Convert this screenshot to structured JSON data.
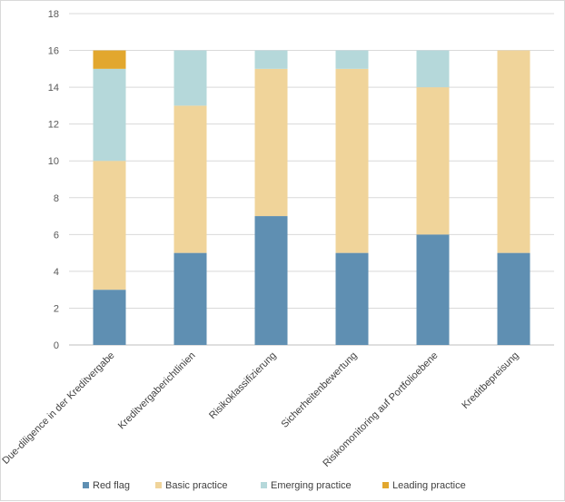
{
  "chart_data": {
    "type": "bar",
    "stacked": true,
    "categories": [
      "Due-diligence in der Kreditvergabe",
      "Kreditvergaberichtlinien",
      "Risikoklassifizierung",
      "Sicherheitenbewertung",
      "Risikomonitoring auf Portfolioebene",
      "Kreditbepreisung"
    ],
    "series": [
      {
        "name": "Red flag",
        "color": "#5f8fb2",
        "values": [
          3,
          5,
          7,
          5,
          6,
          5
        ]
      },
      {
        "name": "Basic practice",
        "color": "#f0d49a",
        "values": [
          7,
          8,
          8,
          10,
          8,
          11
        ]
      },
      {
        "name": "Emerging practice",
        "color": "#b5d8da",
        "values": [
          5,
          3,
          1,
          1,
          2,
          0
        ]
      },
      {
        "name": "Leading practice",
        "color": "#e2a72e",
        "values": [
          1,
          0,
          0,
          0,
          0,
          0
        ]
      }
    ],
    "y_ticks": [
      "0",
      "2",
      "4",
      "6",
      "8",
      "10",
      "12",
      "14",
      "16",
      "18"
    ],
    "ylim": [
      0,
      18
    ],
    "grid": true,
    "legend_position": "bottom"
  }
}
